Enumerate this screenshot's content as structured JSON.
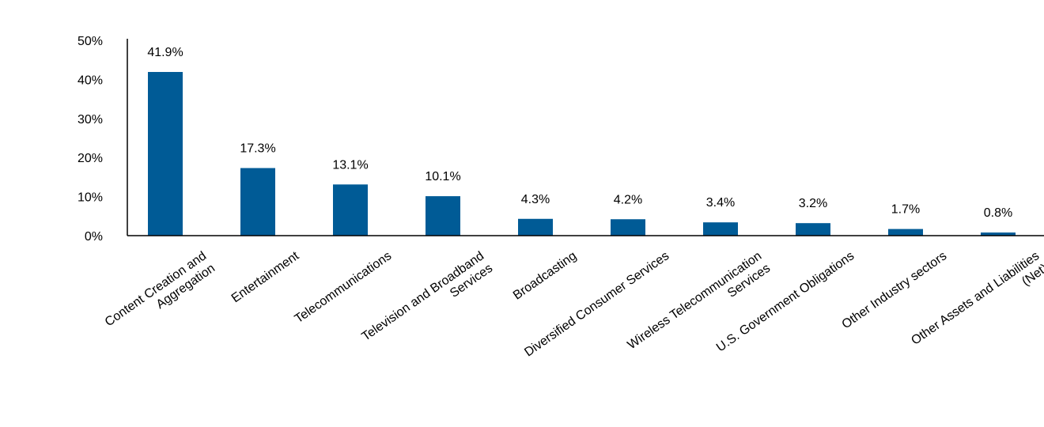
{
  "chart_data": {
    "type": "bar",
    "categories": [
      [
        "Content Creation and",
        "Aggregation"
      ],
      [
        "Entertainment"
      ],
      [
        "Telecommunications"
      ],
      [
        "Television and Broadband",
        "Services"
      ],
      [
        "Broadcasting"
      ],
      [
        "Diversified Consumer Services"
      ],
      [
        "Wireless Telecommunication",
        "Services"
      ],
      [
        "U.S. Government Obligations"
      ],
      [
        "Other Industry sectors"
      ],
      [
        "Other Assets and Liabilities",
        "(Net)"
      ]
    ],
    "values": [
      41.9,
      17.3,
      13.1,
      10.1,
      4.3,
      4.2,
      3.4,
      3.2,
      1.7,
      0.8
    ],
    "value_labels": [
      "41.9%",
      "17.3%",
      "13.1%",
      "10.1%",
      "4.3%",
      "4.2%",
      "3.4%",
      "3.2%",
      "1.7%",
      "0.8%"
    ],
    "y_ticks": [
      0,
      10,
      20,
      30,
      40,
      50
    ],
    "y_tick_labels": [
      "0%",
      "10%",
      "20%",
      "30%",
      "40%",
      "50%"
    ],
    "ylim": [
      0,
      50
    ],
    "grid": false,
    "legend": "none",
    "bar_color": "#005b96",
    "title": "",
    "xlabel": "",
    "ylabel": ""
  }
}
